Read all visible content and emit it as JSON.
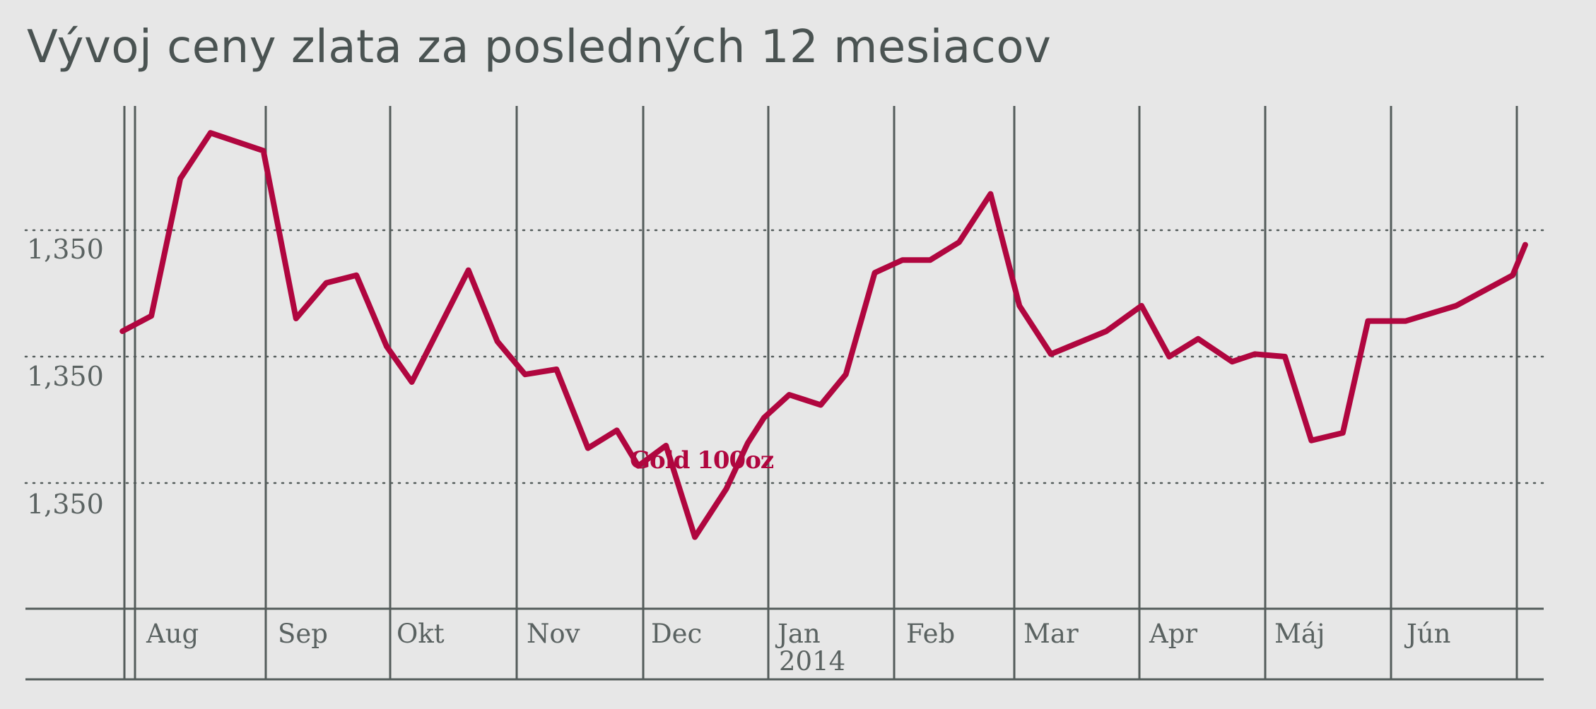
{
  "chart_data": {
    "type": "line",
    "title": "Vývoj ceny zlata za posledných 12 mesiacov",
    "xlabel": "",
    "ylabel": "",
    "y_tick_labels": [
      "1,350",
      "1,350",
      "1,350"
    ],
    "x_month_labels": [
      {
        "label": "Aug"
      },
      {
        "label": "Sep"
      },
      {
        "label": "Okt"
      },
      {
        "label": "Nov"
      },
      {
        "label": "Dec"
      },
      {
        "label": "Jan",
        "sublabel": "2014"
      },
      {
        "label": "Feb"
      },
      {
        "label": "Mar"
      },
      {
        "label": "Apr"
      },
      {
        "label": "Máj"
      },
      {
        "label": "Jún"
      }
    ],
    "x_range_months": [
      0,
      11.95
    ],
    "y_range": [
      1182,
      1440
    ],
    "grid": "vertical month lines, dotted horizontal lines at y ticks",
    "series": [
      {
        "name": "Gold 100oz",
        "color": "#b0063f",
        "x": [
          -0.1,
          0.13,
          0.36,
          0.6,
          1.02,
          1.28,
          1.52,
          1.76,
          2.0,
          2.2,
          2.65,
          2.88,
          3.1,
          3.35,
          3.6,
          3.83,
          4.0,
          4.22,
          4.45,
          4.7,
          4.87,
          5.0,
          5.2,
          5.45,
          5.65,
          5.88,
          6.1,
          6.32,
          6.55,
          6.8,
          7.03,
          7.28,
          7.72,
          8.0,
          8.22,
          8.45,
          8.72,
          8.9,
          9.14,
          9.35,
          9.6,
          9.8,
          10.1,
          10.5,
          10.8,
          10.95,
          11.05
        ],
        "y": [
          1330,
          1336,
          1390,
          1408,
          1401,
          1335,
          1349,
          1352,
          1324,
          1310,
          1354,
          1326,
          1313,
          1315,
          1284,
          1291,
          1277,
          1285,
          1249,
          1268,
          1286,
          1296,
          1305,
          1301,
          1313,
          1353,
          1358,
          1358,
          1365,
          1384,
          1340,
          1321,
          1330,
          1340,
          1320,
          1327,
          1318,
          1321,
          1320,
          1287,
          1290,
          1334,
          1334,
          1340,
          1348,
          1352,
          1364
        ]
      }
    ],
    "annotations": [
      {
        "text": "Gold 100oz"
      }
    ]
  }
}
